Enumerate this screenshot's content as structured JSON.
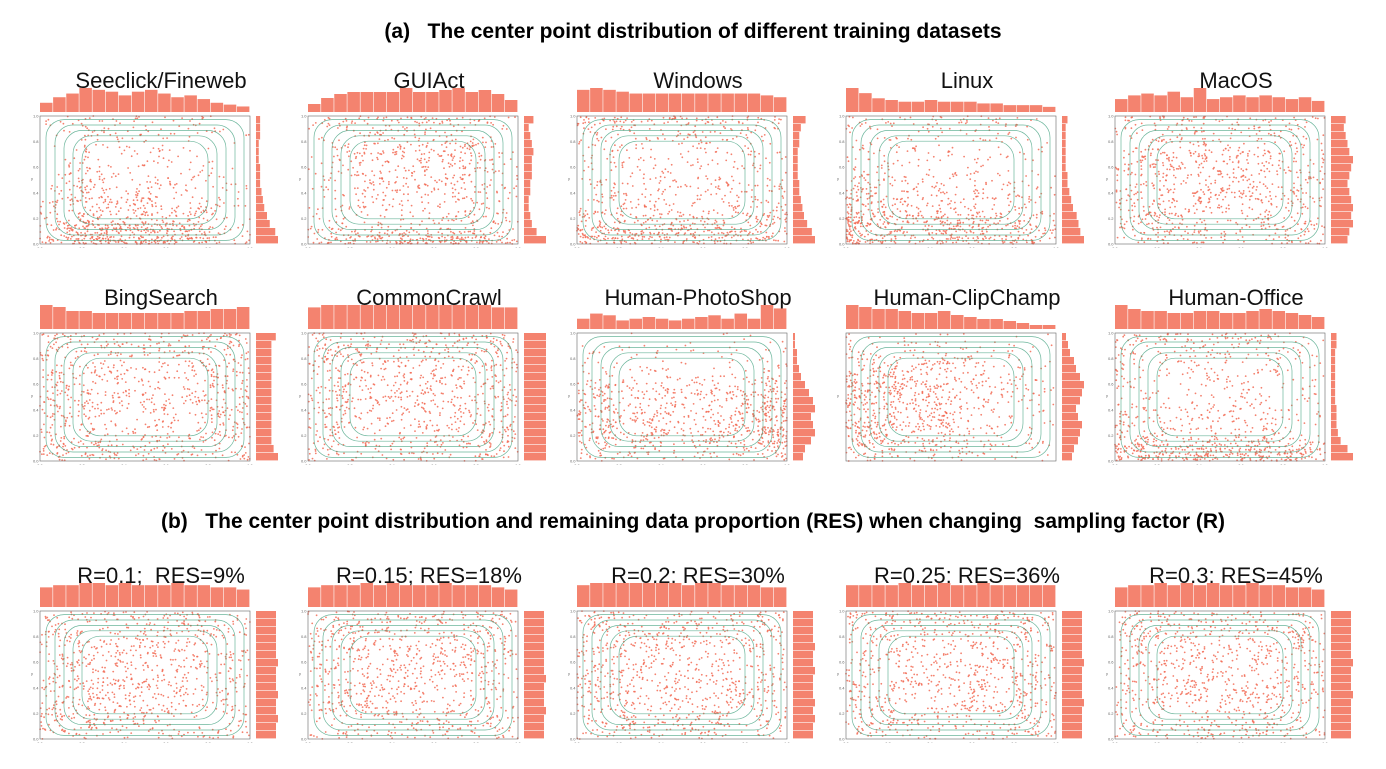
{
  "figure": {
    "title_a": "(a)   The center point distribution of different training datasets",
    "title_b": "(b)   The center point distribution and remaining data proportion (RES) when changing  sampling factor (R)"
  },
  "colors": {
    "points": "#f26b55",
    "hist": "#f4836f",
    "contour": "#3a9d7a",
    "axis": "#666666"
  },
  "chart_data": [
    {
      "type": "scatter",
      "title": "Seeclick/Fineweb",
      "xlim": [
        0,
        1
      ],
      "ylim": [
        0,
        1
      ],
      "xlabel": "x",
      "ylabel": "y",
      "x_ticks": [
        "0.0",
        "0.2",
        "0.4",
        "0.6",
        "0.8",
        "1.0"
      ],
      "y_ticks": [
        "0.0",
        "0.2",
        "0.4",
        "0.6",
        "0.8",
        "1.0"
      ],
      "x_hist": [
        5,
        8,
        10,
        13,
        12,
        11,
        9,
        11,
        12,
        10,
        8,
        9,
        7,
        5,
        4,
        3
      ],
      "y_hist": [
        16,
        14,
        10,
        8,
        6,
        5,
        4,
        3,
        3,
        3,
        2,
        2,
        2,
        3,
        3,
        3
      ]
    },
    {
      "type": "scatter",
      "title": "GUIAct",
      "xlim": [
        0,
        1
      ],
      "ylim": [
        0,
        1
      ],
      "xlabel": "x",
      "ylabel": "y",
      "x_ticks": [
        "0.0",
        "0.2",
        "0.4",
        "0.6",
        "0.8",
        "1.0"
      ],
      "y_ticks": [
        "0.0",
        "0.2",
        "0.4",
        "0.6",
        "0.8",
        "1.0"
      ],
      "x_hist": [
        4,
        7,
        9,
        10,
        10,
        10,
        10,
        12,
        10,
        10,
        11,
        12,
        10,
        11,
        9,
        6
      ],
      "y_hist": [
        14,
        8,
        5,
        4,
        3,
        3,
        4,
        4,
        5,
        5,
        5,
        6,
        5,
        4,
        3,
        6
      ]
    },
    {
      "type": "scatter",
      "title": "Windows",
      "xlim": [
        0,
        1
      ],
      "ylim": [
        0,
        1
      ],
      "xlabel": "x",
      "ylabel": "y",
      "x_ticks": [
        "0.0",
        "0.2",
        "0.4",
        "0.6",
        "0.8",
        "1.0"
      ],
      "y_ticks": [
        "0.0",
        "0.2",
        "0.4",
        "0.6",
        "0.8",
        "1.0"
      ],
      "x_hist": [
        12,
        13,
        12,
        11,
        10,
        10,
        10,
        10,
        10,
        10,
        10,
        10,
        10,
        10,
        9,
        8
      ],
      "y_hist": [
        14,
        12,
        9,
        7,
        6,
        5,
        4,
        4,
        3,
        3,
        3,
        3,
        4,
        4,
        5,
        8
      ]
    },
    {
      "type": "scatter",
      "title": "Linux",
      "xlim": [
        0,
        1
      ],
      "ylim": [
        0,
        1
      ],
      "xlabel": "x",
      "ylabel": "y",
      "x_ticks": [
        "0.0",
        "0.2",
        "0.4",
        "0.6",
        "0.8",
        "1.0"
      ],
      "y_ticks": [
        "0.0",
        "0.2",
        "0.4",
        "0.6",
        "0.8",
        "1.0"
      ],
      "x_hist": [
        14,
        11,
        8,
        7,
        6,
        6,
        7,
        6,
        6,
        6,
        5,
        5,
        4,
        4,
        4,
        3
      ],
      "y_hist": [
        12,
        10,
        9,
        8,
        6,
        5,
        4,
        3,
        3,
        2,
        2,
        2,
        2,
        2,
        2,
        3
      ]
    },
    {
      "type": "scatter",
      "title": "MacOS",
      "xlim": [
        0,
        1
      ],
      "ylim": [
        0,
        1
      ],
      "xlabel": "x",
      "ylabel": "y",
      "x_ticks": [
        "0.0",
        "0.2",
        "0.4",
        "0.6",
        "0.8",
        "1.0"
      ],
      "y_ticks": [
        "0.0",
        "0.2",
        "0.4",
        "0.6",
        "0.8",
        "1.0"
      ],
      "x_hist": [
        7,
        9,
        10,
        9,
        11,
        8,
        13,
        7,
        8,
        9,
        8,
        9,
        8,
        7,
        8,
        6
      ],
      "y_hist": [
        9,
        10,
        12,
        11,
        12,
        11,
        10,
        9,
        10,
        11,
        12,
        10,
        9,
        8,
        7,
        8
      ]
    },
    {
      "type": "scatter",
      "title": "BingSearch",
      "xlim": [
        0,
        1
      ],
      "ylim": [
        0,
        1
      ],
      "xlabel": "x",
      "ylabel": "y",
      "x_ticks": [
        "0.0",
        "0.2",
        "0.4",
        "0.6",
        "0.8",
        "1.0"
      ],
      "y_ticks": [
        "0.0",
        "0.2",
        "0.4",
        "0.6",
        "0.8",
        "1.0"
      ],
      "x_hist": [
        12,
        11,
        9,
        9,
        8,
        8,
        8,
        8,
        8,
        8,
        8,
        9,
        9,
        10,
        10,
        11
      ],
      "y_hist": [
        10,
        8,
        7,
        7,
        7,
        7,
        7,
        7,
        7,
        7,
        7,
        7,
        7,
        7,
        7,
        9
      ]
    },
    {
      "type": "scatter",
      "title": "CommonCrawl",
      "xlim": [
        0,
        1
      ],
      "ylim": [
        0,
        1
      ],
      "xlabel": "x",
      "ylabel": "y",
      "x_ticks": [
        "0.0",
        "0.2",
        "0.4",
        "0.6",
        "0.8",
        "1.0"
      ],
      "y_ticks": [
        "0.0",
        "0.2",
        "0.4",
        "0.6",
        "0.8",
        "1.0"
      ],
      "x_hist": [
        9,
        10,
        10,
        10,
        10,
        10,
        10,
        10,
        10,
        10,
        10,
        10,
        10,
        10,
        9,
        9
      ],
      "y_hist": [
        10,
        10,
        10,
        10,
        10,
        10,
        10,
        10,
        10,
        10,
        10,
        10,
        10,
        10,
        10,
        10
      ]
    },
    {
      "type": "scatter",
      "title": "Human-PhotoShop",
      "xlim": [
        0,
        1
      ],
      "ylim": [
        0,
        1
      ],
      "xlabel": "x",
      "ylabel": "y",
      "x_ticks": [
        "0.0",
        "0.2",
        "0.4",
        "0.6",
        "0.8",
        "1.0"
      ],
      "y_ticks": [
        "0.0",
        "0.2",
        "0.4",
        "0.6",
        "0.8",
        "1.0"
      ],
      "x_hist": [
        6,
        9,
        8,
        5,
        6,
        7,
        6,
        5,
        6,
        7,
        8,
        6,
        9,
        6,
        14,
        12
      ],
      "y_hist": [
        5,
        6,
        9,
        11,
        10,
        9,
        11,
        10,
        8,
        6,
        4,
        3,
        2,
        2,
        1,
        1
      ]
    },
    {
      "type": "scatter",
      "title": "Human-ClipChamp",
      "xlim": [
        0,
        1
      ],
      "ylim": [
        0,
        1
      ],
      "xlabel": "x",
      "ylabel": "y",
      "x_hist": [
        12,
        11,
        10,
        10,
        9,
        8,
        8,
        9,
        7,
        6,
        5,
        5,
        4,
        3,
        2,
        2
      ],
      "y_hist": [
        5,
        6,
        8,
        9,
        10,
        8,
        7,
        9,
        10,
        11,
        9,
        7,
        6,
        4,
        3,
        2
      ]
    },
    {
      "type": "scatter",
      "title": "Human-Office",
      "xlim": [
        0,
        1
      ],
      "ylim": [
        0,
        1
      ],
      "xlabel": "x",
      "ylabel": "y",
      "x_ticks": [
        "0.0",
        "0.2",
        "0.4",
        "0.6",
        "0.8",
        "1.0"
      ],
      "y_ticks": [
        "0.0",
        "0.2",
        "0.4",
        "0.6",
        "0.8",
        "1.0"
      ],
      "x_hist": [
        12,
        10,
        9,
        9,
        8,
        8,
        9,
        9,
        8,
        8,
        9,
        10,
        9,
        8,
        7,
        6
      ],
      "y_hist": [
        16,
        12,
        7,
        5,
        4,
        4,
        4,
        3,
        3,
        3,
        3,
        3,
        3,
        3,
        4,
        4
      ]
    },
    {
      "type": "scatter",
      "title": "R=0.1;  RES=9%",
      "xlim": [
        0,
        1
      ],
      "ylim": [
        0,
        1
      ],
      "xlabel": "x",
      "ylabel": "y",
      "x_ticks": [
        "0.0",
        "0.2",
        "0.4",
        "0.6",
        "0.8",
        "1.0"
      ],
      "y_ticks": [
        "0.0",
        "0.2",
        "0.4",
        "0.6",
        "0.8",
        "1.0"
      ],
      "x_hist": [
        9,
        10,
        10,
        11,
        11,
        10,
        11,
        10,
        10,
        10,
        11,
        10,
        10,
        9,
        9,
        8
      ],
      "y_hist": [
        10,
        10,
        11,
        10,
        10,
        11,
        10,
        10,
        10,
        11,
        10,
        10,
        10,
        10,
        10,
        10
      ]
    },
    {
      "type": "scatter",
      "title": "R=0.15; RES=18%",
      "xlim": [
        0,
        1
      ],
      "ylim": [
        0,
        1
      ],
      "xlabel": "x",
      "ylabel": "y",
      "x_ticks": [
        "0.0",
        "0.2",
        "0.4",
        "0.6",
        "0.8",
        "1.0"
      ],
      "y_ticks": [
        "0.0",
        "0.2",
        "0.4",
        "0.6",
        "0.8",
        "1.0"
      ],
      "x_hist": [
        9,
        10,
        10,
        10,
        11,
        10,
        11,
        10,
        10,
        10,
        11,
        10,
        10,
        10,
        9,
        8
      ],
      "y_hist": [
        10,
        10,
        10,
        11,
        10,
        10,
        10,
        11,
        10,
        10,
        10,
        10,
        10,
        10,
        10,
        10
      ]
    },
    {
      "type": "scatter",
      "title": "R=0.2; RES=30%",
      "xlim": [
        0,
        1
      ],
      "ylim": [
        0,
        1
      ],
      "xlabel": "x",
      "ylabel": "y",
      "x_ticks": [
        "0.0",
        "0.2",
        "0.4",
        "0.6",
        "0.8",
        "1.0"
      ],
      "y_ticks": [
        "0.0",
        "0.2",
        "0.4",
        "0.6",
        "0.8",
        "1.0"
      ],
      "x_hist": [
        10,
        11,
        11,
        11,
        11,
        11,
        11,
        11,
        10,
        11,
        11,
        10,
        10,
        10,
        9,
        9
      ],
      "y_hist": [
        10,
        10,
        11,
        10,
        11,
        10,
        10,
        10,
        11,
        10,
        10,
        11,
        10,
        10,
        10,
        10
      ]
    },
    {
      "type": "scatter",
      "title": "R=0.25; RES=36%",
      "xlim": [
        0,
        1
      ],
      "ylim": [
        0,
        1
      ],
      "xlabel": "x",
      "ylabel": "y",
      "x_ticks": [
        "0.0",
        "0.2",
        "0.4",
        "0.6",
        "0.8",
        "1.0"
      ],
      "y_ticks": [
        "0.0",
        "0.2",
        "0.4",
        "0.6",
        "0.8",
        "1.0"
      ],
      "x_hist": [
        10,
        10,
        10,
        10,
        11,
        10,
        10,
        11,
        10,
        10,
        11,
        10,
        10,
        10,
        10,
        10
      ],
      "y_hist": [
        10,
        10,
        10,
        10,
        11,
        10,
        10,
        10,
        10,
        11,
        10,
        10,
        10,
        10,
        10,
        10
      ]
    },
    {
      "type": "scatter",
      "title": "R=0.3; RES=45%",
      "xlim": [
        0,
        1
      ],
      "ylim": [
        0,
        1
      ],
      "xlabel": "x",
      "ylabel": "y",
      "x_ticks": [
        "0.0",
        "0.2",
        "0.4",
        "0.6",
        "0.8",
        "1.0"
      ],
      "y_ticks": [
        "0.0",
        "0.2",
        "0.4",
        "0.6",
        "0.8",
        "1.0"
      ],
      "x_hist": [
        9,
        10,
        10,
        11,
        10,
        11,
        10,
        11,
        10,
        10,
        11,
        10,
        10,
        9,
        9,
        8
      ],
      "y_hist": [
        10,
        10,
        10,
        10,
        10,
        11,
        10,
        10,
        10,
        11,
        10,
        10,
        10,
        10,
        10,
        10
      ]
    }
  ]
}
